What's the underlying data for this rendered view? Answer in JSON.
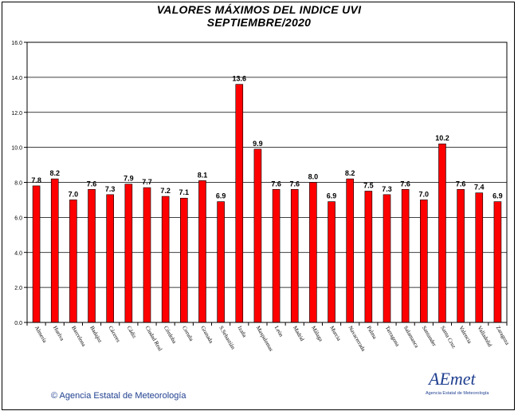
{
  "chart_data": {
    "type": "bar",
    "title": "VALORES MÁXIMOS DEL INDICE UVI",
    "subtitle": "SEPTIEMBRE/2020",
    "categories": [
      "Almería",
      "Huelva",
      "Barcelona",
      "Badajoz",
      "Cáceres",
      "Cádiz",
      "Ciudad Real",
      "Córdoba",
      "Coruña",
      "Granada",
      "S.Sebastián",
      "Izaña",
      "Maspalomas",
      "León",
      "Madrid",
      "Málaga",
      "Murcia",
      "Navacerrada",
      "Palma",
      "Tarragona",
      "Salamanca",
      "Santander",
      "Santa Cruz",
      "Valencia",
      "Valladolid",
      "Zaragoza"
    ],
    "values": [
      7.8,
      8.2,
      7.0,
      7.6,
      7.3,
      7.9,
      7.7,
      7.2,
      7.1,
      8.1,
      6.9,
      13.6,
      9.9,
      7.6,
      7.6,
      8.0,
      6.9,
      8.2,
      7.5,
      7.3,
      7.6,
      7.0,
      10.2,
      7.6,
      7.4,
      6.9
    ],
    "value_labels": [
      "7.8",
      "8.2",
      "7.0",
      "7.6",
      "7.3",
      "7.9",
      "7.7",
      "7.2",
      "7.1",
      "8.1",
      "6.9",
      "13.6",
      "9.9",
      "7.6",
      "7.6",
      "8.0",
      "6.9",
      "8.2",
      "7.5",
      "7.3",
      "7.6",
      "7.0",
      "10.2",
      "7.6",
      "7.4",
      "6.9"
    ],
    "ylim": [
      0,
      16
    ],
    "yticks": [
      "0.0",
      "2.0",
      "4.0",
      "6.0",
      "8.0",
      "10.0",
      "12.0",
      "14.0",
      "16.0"
    ],
    "grid": true,
    "bar_color": "#ff0000",
    "xlabel": "",
    "ylabel": ""
  },
  "footer": {
    "credit": "© Agencia Estatal de Meteorología",
    "logo_text": "AEmet",
    "logo_sub": "Agencia Estatal de Meteorología"
  }
}
